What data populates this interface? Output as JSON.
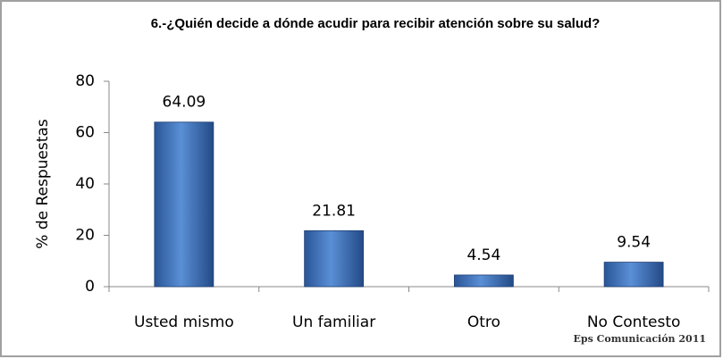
{
  "chart_data": {
    "type": "bar",
    "title": "6.-¿Quién decide a dónde acudir para recibir atención sobre su salud?",
    "y_label": "% de Respuestas",
    "categories": [
      "Usted mismo",
      "Un familiar",
      "Otro",
      "No Contesto"
    ],
    "values": [
      64.09,
      21.81,
      4.54,
      9.54
    ],
    "color": "#3d6fb5",
    "ylim": [
      0,
      80
    ],
    "yticks": [
      0,
      20,
      40,
      60,
      80
    ],
    "annotation": "Eps Comunicación 2011"
  }
}
